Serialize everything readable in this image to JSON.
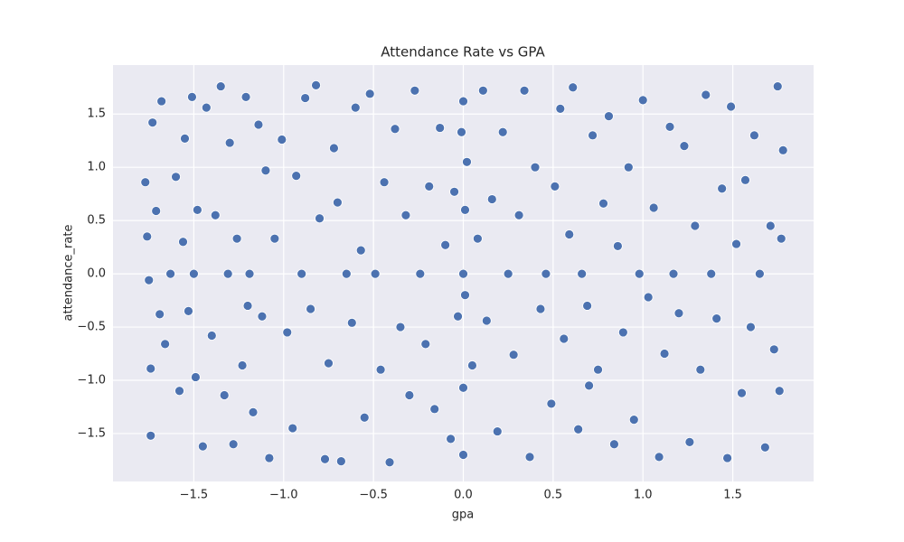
{
  "chart_data": {
    "type": "scatter",
    "title": "Attendance Rate vs GPA",
    "x_label": "gpa",
    "y_label": "attendance_rate",
    "color": "#4c72b0",
    "grid": true,
    "xlim": [
      -1.95,
      1.95
    ],
    "ylim": [
      -1.95,
      1.96
    ],
    "xticks": [
      {
        "value": -1.5,
        "label": "−1.5"
      },
      {
        "value": -1,
        "label": "−1.0"
      },
      {
        "value": -0.5,
        "label": "−0.5"
      },
      {
        "value": 0,
        "label": "0.0"
      },
      0.5,
      {
        "value": 1,
        "label": "1.0"
      },
      1.5
    ],
    "yticks": [
      {
        "value": -1.5,
        "label": "−1.5"
      },
      {
        "value": -1,
        "label": "−1.0"
      },
      {
        "value": -0.5,
        "label": "−0.5"
      },
      {
        "value": 0,
        "label": "0.0"
      },
      0.5,
      {
        "value": 1,
        "label": "1.0"
      },
      1.5
    ],
    "x": [
      -1.77,
      -1.76,
      -1.75,
      -1.74,
      -1.74,
      -1.73,
      -1.71,
      -1.69,
      -1.68,
      -1.66,
      -1.63,
      -1.6,
      -1.58,
      -1.56,
      -1.55,
      -1.53,
      -1.51,
      -1.5,
      -1.49,
      -1.48,
      -1.45,
      -1.43,
      -1.4,
      -1.38,
      -1.35,
      -1.33,
      -1.31,
      -1.3,
      -1.28,
      -1.26,
      -1.23,
      -1.21,
      -1.19,
      -1.17,
      -1.14,
      -1.12,
      -1.1,
      -1.08,
      -1.05,
      -1.01,
      -0.98,
      -0.95,
      -0.93,
      -0.9,
      -0.88,
      -0.85,
      -0.82,
      -0.8,
      -0.77,
      -0.75,
      -0.72,
      -0.7,
      -0.68,
      -0.65,
      -0.62,
      -0.6,
      -0.57,
      -0.55,
      -0.52,
      -0.49,
      -0.46,
      -0.44,
      -0.41,
      -0.38,
      -0.35,
      -0.32,
      -0.3,
      -0.27,
      -0.24,
      -0.21,
      -0.19,
      -0.16,
      -0.13,
      -0.1,
      -0.07,
      -0.05,
      -0.03,
      -0.01,
      0,
      0,
      0,
      0.01,
      0.01,
      0,
      0.02,
      0.05,
      0.08,
      0.11,
      0.13,
      0.16,
      0.19,
      0.22,
      0.25,
      0.28,
      0.31,
      0.34,
      0.37,
      0.4,
      0.43,
      0.46,
      0.49,
      0.51,
      0.54,
      0.56,
      0.59,
      0.61,
      0.64,
      0.66,
      0.69,
      0.72,
      0.75,
      0.78,
      0.81,
      0.84,
      0.86,
      0.89,
      0.92,
      0.95,
      0.98,
      1,
      1.03,
      1.06,
      1.09,
      1.12,
      1.15,
      1.17,
      1.2,
      1.23,
      1.26,
      1.29,
      1.32,
      1.35,
      1.38,
      1.41,
      1.44,
      1.47,
      1.49,
      1.52,
      1.55,
      1.57,
      1.6,
      1.62,
      1.65,
      1.68,
      1.71,
      1.73,
      1.75,
      1.76,
      1.77,
      1.78,
      -1.2,
      0.7
    ],
    "values": [
      0.86,
      0.35,
      -0.06,
      -0.89,
      -1.52,
      1.42,
      0.59,
      -0.38,
      1.62,
      -0.66,
      0,
      0.91,
      -1.1,
      0.3,
      1.27,
      -0.35,
      1.66,
      0,
      -0.97,
      0.6,
      -1.62,
      1.56,
      -0.58,
      0.55,
      1.76,
      -1.14,
      0,
      1.23,
      -1.6,
      0.33,
      -0.86,
      1.66,
      0,
      -1.3,
      1.4,
      -0.4,
      0.97,
      -1.73,
      0.33,
      1.26,
      -0.55,
      -1.45,
      0.92,
      0,
      1.65,
      -0.33,
      1.77,
      0.52,
      -1.74,
      -0.84,
      1.18,
      0.67,
      -1.76,
      0,
      -0.46,
      1.56,
      0.22,
      -1.35,
      1.69,
      0,
      -0.9,
      0.86,
      -1.77,
      1.36,
      -0.5,
      0.55,
      -1.14,
      1.72,
      0,
      -0.66,
      0.82,
      -1.27,
      1.37,
      0.27,
      -1.55,
      0.77,
      -0.4,
      1.33,
      0,
      -1.07,
      1.62,
      0.6,
      -0.2,
      -1.7,
      1.05,
      -0.86,
      0.33,
      1.72,
      -0.44,
      0.7,
      -1.48,
      1.33,
      0,
      -0.76,
      0.55,
      1.72,
      -1.72,
      1,
      -0.33,
      0,
      -1.22,
      0.82,
      1.55,
      -0.61,
      0.37,
      1.75,
      -1.46,
      0,
      -0.3,
      1.3,
      -0.9,
      0.66,
      1.48,
      -1.6,
      0.26,
      -0.55,
      1,
      -1.37,
      0,
      1.63,
      -0.22,
      0.62,
      -1.72,
      -0.75,
      1.38,
      0,
      -0.37,
      1.2,
      -1.58,
      0.45,
      -0.9,
      1.68,
      0,
      -0.42,
      0.8,
      -1.73,
      1.57,
      0.28,
      -1.12,
      0.88,
      -0.5,
      1.3,
      0,
      -1.63,
      0.45,
      -0.71,
      1.76,
      -1.1,
      0.33,
      1.16,
      -0.3,
      -1.05
    ]
  }
}
